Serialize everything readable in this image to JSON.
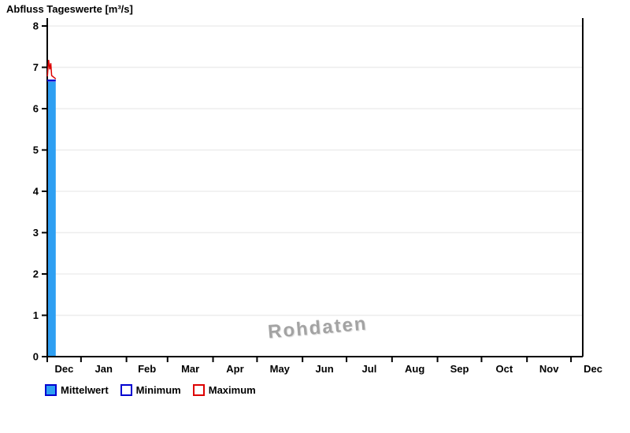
{
  "page": {
    "title": "Abfluss Tageswerte [m³/s]"
  },
  "chart_data": {
    "type": "bar",
    "title": "Abfluss Tageswerte [m³/s]",
    "watermark": "Rohdaten",
    "grid": "horizontal-only",
    "colors": {
      "axis": "#000000",
      "grid": "#ededed",
      "bar_fill": "#2e9ff2",
      "blue_line": "#0000d0",
      "red_line": "#dd0000"
    },
    "y_axis": {
      "min": 0,
      "max": 8,
      "ticks": [
        0,
        1,
        2,
        3,
        4,
        5,
        6,
        7,
        8
      ],
      "tick_labels": [
        "0",
        "1",
        "2",
        "3",
        "4",
        "5",
        "6",
        "7",
        "8"
      ]
    },
    "x_axis": {
      "labels": [
        "Dec",
        "Jan",
        "Feb",
        "Mar",
        "Apr",
        "May",
        "Jun",
        "Jul",
        "Aug",
        "Sep",
        "Oct",
        "Nov",
        "Dec"
      ],
      "month_boundary_days": [
        0,
        23,
        54,
        82,
        113,
        143,
        174,
        204,
        235,
        266,
        296,
        327,
        357
      ],
      "total_days": 365
    },
    "series": [
      {
        "name": "Mittelwert",
        "type": "bar",
        "color": "#2e9ff2",
        "points": [
          {
            "day_start": 0,
            "day_end": 5.8,
            "value": 6.65
          }
        ]
      },
      {
        "name": "Minimum",
        "type": "line",
        "color": "#0000d0",
        "points": [
          [
            0,
            6.68
          ],
          [
            5.8,
            6.68
          ]
        ]
      },
      {
        "name": "Maximum",
        "type": "line",
        "color": "#dd0000",
        "points": [
          [
            0.1,
            6.78
          ],
          [
            0.9,
            7.18
          ],
          [
            1.7,
            6.95
          ],
          [
            2.4,
            7.1
          ],
          [
            3.0,
            6.8
          ],
          [
            5.8,
            6.72
          ]
        ]
      }
    ],
    "legend": [
      {
        "label": "Mittelwert",
        "swatch_fill": "#2e9ff2",
        "swatch_border": "#0000d0"
      },
      {
        "label": "Minimum",
        "swatch_fill": "#ffffff",
        "swatch_border": "#0000d0"
      },
      {
        "label": "Maximum",
        "swatch_fill": "#ffffff",
        "swatch_border": "#dd0000"
      }
    ],
    "legend_position": "bottom-left"
  }
}
